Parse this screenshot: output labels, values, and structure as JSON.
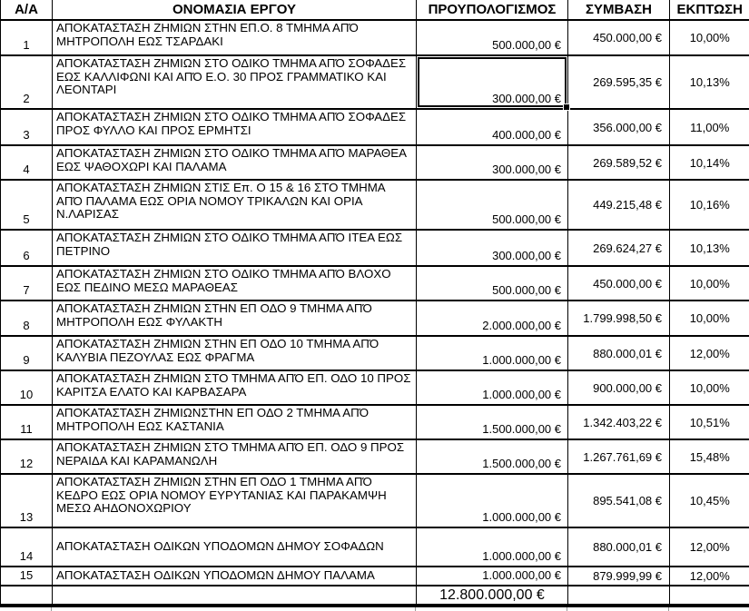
{
  "table": {
    "headers": {
      "aa": "Α/Α",
      "name": "ΟΝΟΜΑΣΙΑ ΕΡΓΟΥ",
      "budget": "ΠΡΟΥΠΟΛΟΓΙΣΜΟΣ",
      "contract": "ΣΥΜΒΑΣΗ",
      "discount": "ΕΚΠΤΩΣΗ"
    },
    "rows": [
      {
        "aa": "1",
        "name": "ΑΠΟΚΑΤΑΣΤΑΣΗ ΖΗΜΙΩΝ ΣΤΗΝ ΕΠ.Ο. 8 ΤΜΗΜΑ ΑΠΌ ΜΗΤΡΟΠΟΛΗ ΕΩΣ ΤΣΑΡΔΑΚΙ",
        "budget": "500.000,00 €",
        "contract": "450.000,00 €",
        "discount": "10,00%"
      },
      {
        "aa": "2",
        "name": "ΑΠΟΚΑΤΑΣΤΑΣΗ ΖΗΜΙΩΝ ΣΤΟ ΟΔΙΚΟ ΤΜΗΜΑ ΑΠΌ ΣΟΦΑΔΕΣ ΕΩΣ ΚΑΛΛΙΦΩΝΙ ΚΑΙ ΑΠΌ Ε.Ο. 30 ΠΡΟΣ ΓΡΑΜΜΑΤΙΚΟ ΚΑΙ ΛΕΟΝΤΑΡΙ",
        "budget": "300.000,00 €",
        "contract": "269.595,35 €",
        "discount": "10,13%"
      },
      {
        "aa": "3",
        "name": "ΑΠΟΚΑΤΑΣΤΑΣΗ ΖΗΜΙΩΝ ΣΤΟ ΟΔΙΚΟ ΤΜΗΜΑ ΑΠΌ ΣΟΦΑΔΕΣ ΠΡΟΣ ΦΥΛΛΟ ΚΑΙ ΠΡΟΣ ΕΡΜΗΤΣΙ",
        "budget": "400.000,00 €",
        "contract": "356.000,00 €",
        "discount": "11,00%"
      },
      {
        "aa": "4",
        "name": "ΑΠΟΚΑΤΑΣΤΑΣΗ ΖΗΜΙΩΝ ΣΤΟ ΟΔΙΚΟ ΤΜΗΜΑ ΑΠΌ ΜΑΡΑΘΕΑ ΕΩΣ ΨΑΘΟΧΩΡΙ ΚΑΙ ΠΑΛΑΜΑ",
        "budget": "300.000,00 €",
        "contract": "269.589,52 €",
        "discount": "10,14%"
      },
      {
        "aa": "5",
        "name": "ΑΠΟΚΑΤΑΣΤΑΣΗ ΖΗΜΙΩΝ ΣΤΙΣ Επ. Ο 15 & 16 ΣΤΟ ΤΜΗΜΑ ΑΠΌ ΠΑΛΑΜΑ ΕΩΣ ΟΡΙΑ ΝΟΜΟΥ ΤΡΙΚΑΛΩΝ ΚΑΙ ΟΡΙΑ Ν.ΛΑΡΙΣΑΣ",
        "budget": "500.000,00 €",
        "contract": "449.215,48 €",
        "discount": "10,16%"
      },
      {
        "aa": "6",
        "name": "ΑΠΟΚΑΤΑΣΤΑΣΗ ΖΗΜΙΩΝ ΣΤΟ ΟΔΙΚΟ ΤΜΗΜΑ ΑΠΌ ΙΤΕΑ ΕΩΣ ΠΕΤΡΙΝΟ",
        "budget": "300.000,00 €",
        "contract": "269.624,27 €",
        "discount": "10,13%"
      },
      {
        "aa": "7",
        "name": "ΑΠΟΚΑΤΑΣΤΑΣΗ ΖΗΜΙΩΝ ΣΤΟ ΟΔΙΚΟ ΤΜΗΜΑ ΑΠΌ ΒΛΟΧΟ ΕΩΣ ΠΕΔΙΝΟ ΜΕΣΩ ΜΑΡΑΘΕΑΣ",
        "budget": "500.000,00 €",
        "contract": "450.000,00 €",
        "discount": "10,00%"
      },
      {
        "aa": "8",
        "name": "ΑΠΟΚΑΤΑΣΤΑΣΗ ΖΗΜΙΩΝ ΣΤΗΝ ΕΠ ΟΔΟ 9 ΤΜΗΜΑ ΑΠΌ ΜΗΤΡΟΠΟΛΗ ΕΩΣ ΦΥΛΑΚΤΗ",
        "budget": "2.000.000,00 €",
        "contract": "1.799.998,50 €",
        "discount": "10,00%"
      },
      {
        "aa": "9",
        "name": "ΑΠΟΚΑΤΑΣΤΑΣΗ ΖΗΜΙΩΝ ΣΤΗΝ ΕΠ ΟΔΟ 10 ΤΜΗΜΑ ΑΠΌ ΚΑΛΥΒΙΑ ΠΕΖΟΥΛΑΣ ΕΩΣ ΦΡΑΓΜΑ",
        "budget": "1.000.000,00 €",
        "contract": "880.000,01 €",
        "discount": "12,00%"
      },
      {
        "aa": "10",
        "name": "ΑΠΟΚΑΤΑΣΤΑΣΗ ΖΗΜΙΩΝ ΣΤΟ ΤΜΗΜΑ ΑΠΌ ΕΠ. ΟΔΟ 10 ΠΡΟΣ ΚΑΡΙΤΣΑ ΕΛΑΤΟ ΚΑΙ ΚΑΡΒΑΣΑΡΑ",
        "budget": "1.000.000,00 €",
        "contract": "900.000,00 €",
        "discount": "10,00%"
      },
      {
        "aa": "11",
        "name": "ΑΠΟΚΑΤΑΣΤΑΣΗ ΖΗΜΙΩΝΣΤΗΝ ΕΠ ΟΔΟ 2 ΤΜΗΜΑ ΑΠΌ ΜΗΤΡΟΠΟΛΗ ΕΩΣ ΚΑΣΤΑΝΙΑ",
        "budget": "1.500.000,00 €",
        "contract": "1.342.403,22 €",
        "discount": "10,51%"
      },
      {
        "aa": "12",
        "name": "ΑΠΟΚΑΤΑΣΤΑΣΗ ΖΗΜΙΩΝ ΣΤΟ ΤΜΗΜΑ ΑΠΌ ΕΠ. ΟΔΟ 9 ΠΡΟΣ ΝΕΡΑΙΔΑ ΚΑΙ ΚΑΡΑΜΑΝΩΛΗ",
        "budget": "1.500.000,00 €",
        "contract": "1.267.761,69 €",
        "discount": "15,48%"
      },
      {
        "aa": "13",
        "name": "ΑΠΟΚΑΤΑΣΤΑΣΗ ΖΗΜΙΩΝ ΣΤΗΝ ΕΠ ΟΔΟ 1 ΤΜΗΜΑ ΑΠΌ ΚΕΔΡΟ ΕΩΣ ΟΡΙΑ ΝΟΜΟΥ ΕΥΡΥΤΑΝΙΑΣ ΚΑΙ ΠΑΡΑΚΑΜΨΗ ΜΕΣΩ ΑΗΔΟΝΟΧΩΡΙΟΥ",
        "budget": "1.000.000,00 €",
        "contract": "895.541,08 €",
        "discount": "10,45%"
      },
      {
        "aa": "14",
        "name": "ΑΠΟΚΑΤΑΣΤΑΣΗ ΟΔΙΚΩΝ ΥΠΟΔΟΜΩΝ ΔΗΜΟΥ ΣΟΦΑΔΩΝ",
        "budget": "1.000.000,00 €",
        "contract": "880.000,01 €",
        "discount": "12,00%"
      },
      {
        "aa": "15",
        "name": "ΑΠΟΚΑΤΑΣΤΑΣΗ ΟΔΙΚΩΝ ΥΠΟΔΟΜΩΝ ΔΗΜΟΥ ΠΑΛΑΜΑ",
        "budget": "1.000.000,00 €",
        "contract": "879.999,99 €",
        "discount": "12,00%"
      }
    ],
    "total_budget": "12.800.000,00 €"
  },
  "selection": {
    "selected_row": "2",
    "selected_column": "ΠΡΟΥΠΟΛΟΓΙΣΜΟΣ"
  }
}
